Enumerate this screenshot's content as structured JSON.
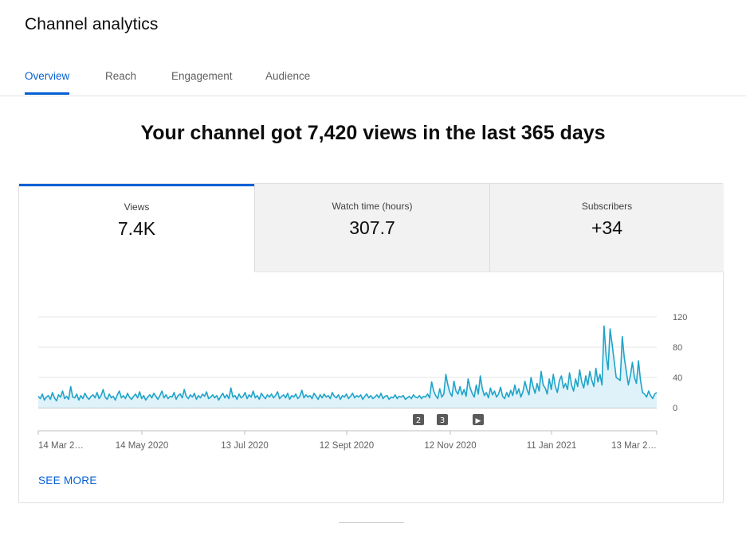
{
  "app": {
    "title": "Channel analytics"
  },
  "tabs": [
    {
      "label": "Overview",
      "active": true
    },
    {
      "label": "Reach",
      "active": false
    },
    {
      "label": "Engagement",
      "active": false
    },
    {
      "label": "Audience",
      "active": false
    }
  ],
  "headline": "Your channel got 7,420 views in the last 365 days",
  "metrics": [
    {
      "label": "Views",
      "value": "7.4K",
      "selected": true
    },
    {
      "label": "Watch time (hours)",
      "value": "307.7",
      "selected": false
    },
    {
      "label": "Subscribers",
      "value": "+34",
      "selected": false
    }
  ],
  "chart_data": {
    "type": "area",
    "series": [
      {
        "values": [
          15,
          12,
          18,
          10,
          14,
          16,
          11,
          20,
          13,
          9,
          17,
          14,
          22,
          12,
          15,
          11,
          28,
          14,
          13,
          18,
          10,
          16,
          12,
          19,
          14,
          11,
          15,
          17,
          13,
          20,
          12,
          16,
          24,
          14,
          11,
          18,
          13,
          15,
          10,
          17,
          22,
          13,
          16,
          12,
          19,
          14,
          11,
          15,
          18,
          13,
          21,
          12,
          16,
          10,
          14,
          17,
          13,
          19,
          15,
          11,
          16,
          22,
          13,
          17,
          12,
          15,
          14,
          20,
          11,
          16,
          18,
          13,
          24,
          15,
          12,
          17,
          14,
          19,
          11,
          16,
          13,
          18,
          15,
          21,
          12,
          14,
          17,
          13,
          16,
          10,
          15,
          19,
          13,
          17,
          12,
          26,
          14,
          16,
          11,
          18,
          13,
          15,
          20,
          12,
          17,
          14,
          22,
          13,
          16,
          11,
          19,
          15,
          12,
          17,
          14,
          18,
          13,
          16,
          21,
          12,
          15,
          17,
          13,
          19,
          11,
          16,
          14,
          18,
          12,
          15,
          23,
          13,
          17,
          14,
          16,
          12,
          19,
          15,
          11,
          17,
          13,
          18,
          14,
          16,
          12,
          20,
          15,
          13,
          17,
          11,
          16,
          14,
          18,
          12,
          15,
          19,
          13,
          16,
          14,
          17,
          11,
          15,
          18,
          13,
          16,
          12,
          14,
          17,
          13,
          19,
          12,
          15,
          16,
          11,
          14,
          13,
          17,
          12,
          15,
          14,
          16,
          11,
          13,
          15,
          12,
          17,
          14,
          13,
          16,
          12,
          15,
          14,
          18,
          13,
          34,
          22,
          16,
          12,
          25,
          14,
          18,
          44,
          30,
          20,
          15,
          35,
          22,
          18,
          28,
          17,
          24,
          15,
          38,
          26,
          19,
          14,
          30,
          18,
          42,
          25,
          16,
          20,
          13,
          26,
          17,
          22,
          14,
          18,
          27,
          15,
          12,
          20,
          14,
          23,
          16,
          30,
          18,
          25,
          14,
          21,
          35,
          24,
          17,
          40,
          28,
          19,
          32,
          22,
          48,
          30,
          26,
          18,
          38,
          24,
          44,
          28,
          20,
          36,
          42,
          26,
          32,
          24,
          46,
          30,
          22,
          38,
          28,
          50,
          34,
          26,
          42,
          30,
          48,
          36,
          28,
          52,
          34,
          44,
          30,
          108,
          70,
          50,
          104,
          84,
          62,
          40,
          38,
          36,
          94,
          66,
          48,
          30,
          42,
          60,
          40,
          32,
          62,
          36,
          20,
          18,
          14,
          22,
          16,
          12,
          18,
          20
        ]
      }
    ],
    "x_tick_labels": [
      "14 Mar 2…",
      "14 May 2020",
      "13 Jul 2020",
      "12 Sept 2020",
      "12 Nov 2020",
      "11 Jan 2021",
      "13 Mar 2…"
    ],
    "y_ticks": [
      0,
      40,
      80,
      120
    ],
    "ylim": [
      0,
      120
    ],
    "annotations": [
      "2",
      "3",
      "▶"
    ],
    "grid": true,
    "colors": {
      "line": "#1fa3c9",
      "fill": "#dff2f9",
      "grid": "#e5e5e5",
      "axis": "#909090"
    }
  },
  "footer": {
    "see_more": "SEE MORE"
  }
}
